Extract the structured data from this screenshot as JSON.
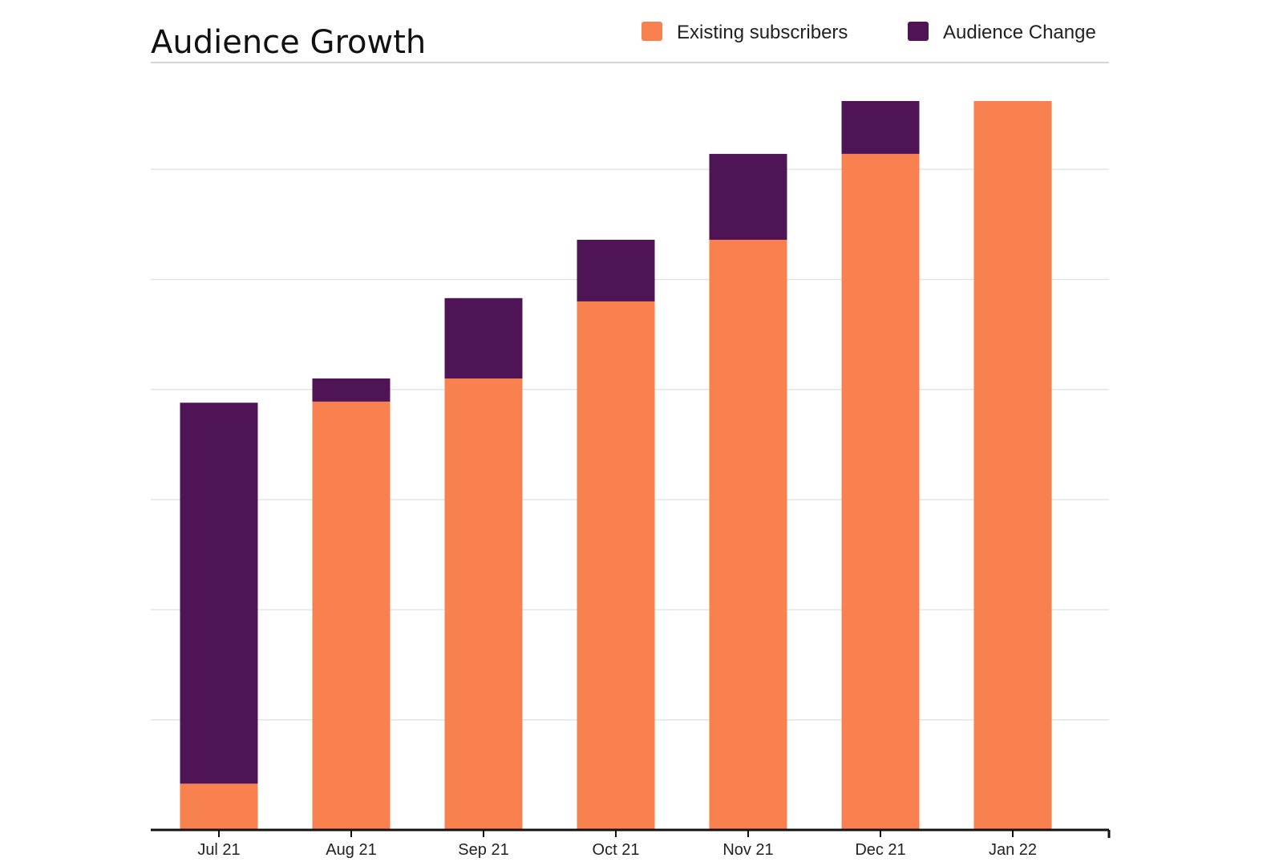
{
  "chart_data": {
    "type": "bar",
    "stacked": true,
    "title": "Audience Growth",
    "xlabel": "",
    "ylabel": "",
    "categories": [
      "Jul 21",
      "Aug 21",
      "Sep 21",
      "Oct 21",
      "Nov 21",
      "Dec 21",
      "Jan 22"
    ],
    "series": [
      {
        "name": "Existing subscribers",
        "color": "#F9804F",
        "values": [
          0.42,
          3.89,
          4.1,
          4.8,
          5.36,
          6.14,
          6.62
        ]
      },
      {
        "name": "Audience Change",
        "color": "#4E1456",
        "values": [
          3.46,
          0.21,
          0.73,
          0.56,
          0.78,
          0.48,
          0
        ]
      }
    ],
    "ylim": [
      0,
      6.62
    ],
    "gridline_step": 1,
    "grid": true,
    "legend_position": "top-right"
  }
}
